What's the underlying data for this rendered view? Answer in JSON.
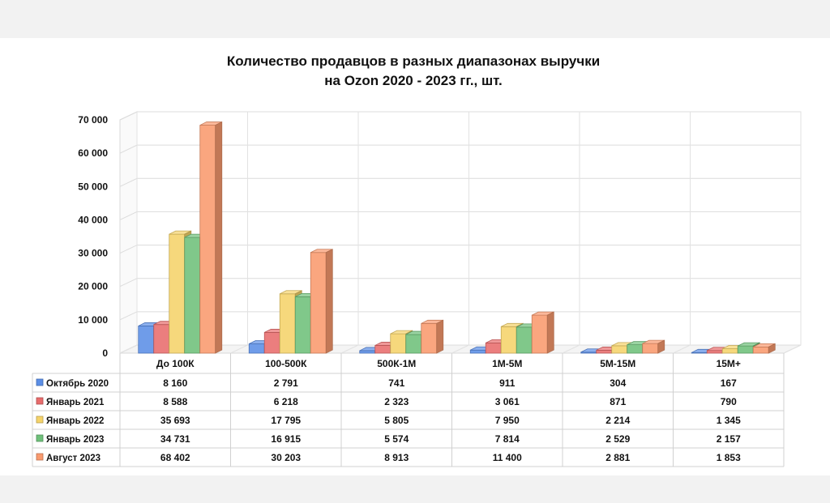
{
  "chart_data": {
    "type": "bar",
    "title_line1": "Количество продавцов в разных диапазонах выручки",
    "title_line2": "на Ozon 2020 - 2023 гг., шт.",
    "categories": [
      "До 100К",
      "100-500К",
      "500К-1М",
      "1М-5М",
      "5М-15М",
      "15М+"
    ],
    "y_ticks": [
      "0",
      "10 000",
      "20 000",
      "30 000",
      "40 000",
      "50 000",
      "60 000",
      "70 000"
    ],
    "ylim": [
      0,
      70000
    ],
    "grid": true,
    "legend_placement": "data-table-left",
    "series": [
      {
        "name": "Октябрь 2020",
        "color": "#5b8ee6",
        "values": [
          8160,
          2791,
          741,
          911,
          304,
          167
        ],
        "labels": [
          "8 160",
          "2 791",
          "741",
          "911",
          "304",
          "167"
        ]
      },
      {
        "name": "Январь 2021",
        "color": "#e86c6c",
        "values": [
          8588,
          6218,
          2323,
          3061,
          871,
          790
        ],
        "labels": [
          "8 588",
          "6 218",
          "2 323",
          "3 061",
          "871",
          "790"
        ]
      },
      {
        "name": "Январь 2022",
        "color": "#f5d36a",
        "values": [
          35693,
          17795,
          5805,
          7950,
          2214,
          1345
        ],
        "labels": [
          "35 693",
          "17 795",
          "5 805",
          "7 950",
          "2 214",
          "1 345"
        ]
      },
      {
        "name": "Январь 2023",
        "color": "#6fc07a",
        "values": [
          34731,
          16915,
          5574,
          7814,
          2529,
          2157
        ],
        "labels": [
          "34 731",
          "16 915",
          "5 574",
          "7 814",
          "2 529",
          "2 157"
        ]
      },
      {
        "name": "Август 2023",
        "color": "#f99a6e",
        "values": [
          68402,
          30203,
          8913,
          11400,
          2881,
          1853
        ],
        "labels": [
          "68 402",
          "30 203",
          "8 913",
          "11 400",
          "2 881",
          "1 853"
        ]
      }
    ]
  }
}
